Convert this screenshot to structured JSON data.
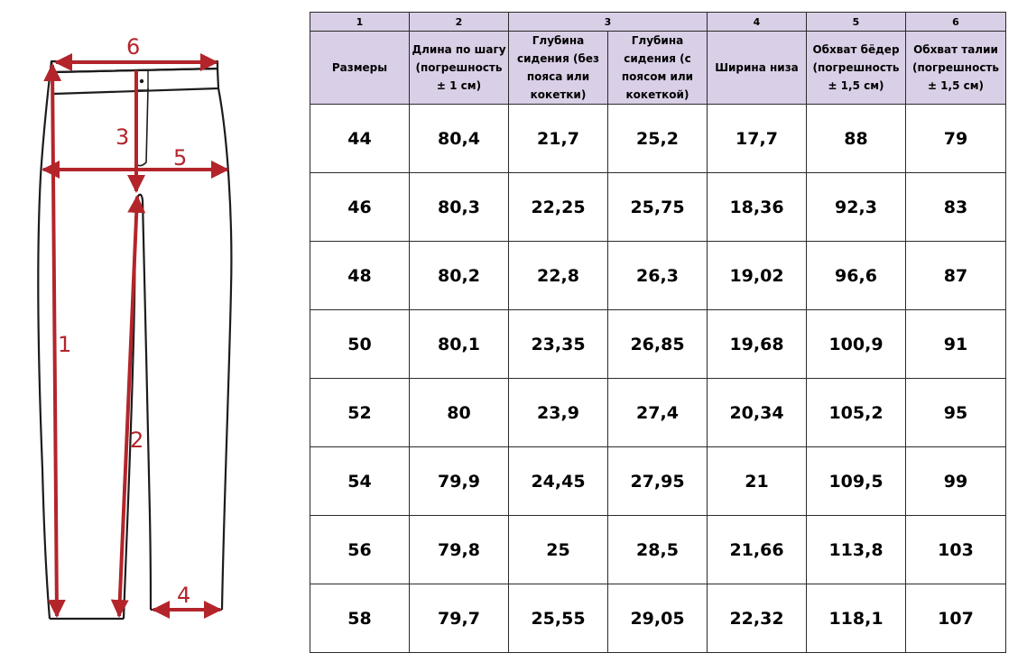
{
  "diagram": {
    "labels": [
      "1",
      "2",
      "3",
      "4",
      "5",
      "6"
    ],
    "line_color": "#b3252b"
  },
  "table": {
    "column_numbers": [
      "1",
      "2",
      "3",
      "4",
      "5",
      "6"
    ],
    "headers": [
      "Размеры",
      "Длина по шагу (погрешность ± 1 см)",
      "Глубина сидения (без пояса или кокетки)",
      "Глубина сидения  (с поясом или кокеткой)",
      "Ширина низа",
      "Обхват бёдер (погрешность ± 1,5 см)",
      "Обхват талии (погрешность ± 1,5 см)"
    ],
    "rows": [
      [
        "44",
        "80,4",
        "21,7",
        "25,2",
        "17,7",
        "88",
        "79"
      ],
      [
        "46",
        "80,3",
        "22,25",
        "25,75",
        "18,36",
        "92,3",
        "83"
      ],
      [
        "48",
        "80,2",
        "22,8",
        "26,3",
        "19,02",
        "96,6",
        "87"
      ],
      [
        "50",
        "80,1",
        "23,35",
        "26,85",
        "19,68",
        "100,9",
        "91"
      ],
      [
        "52",
        "80",
        "23,9",
        "27,4",
        "20,34",
        "105,2",
        "95"
      ],
      [
        "54",
        "79,9",
        "24,45",
        "27,95",
        "21",
        "109,5",
        "99"
      ],
      [
        "56",
        "79,8",
        "25",
        "28,5",
        "21,66",
        "113,8",
        "103"
      ],
      [
        "58",
        "79,7",
        "25,55",
        "29,05",
        "22,32",
        "118,1",
        "107"
      ]
    ],
    "header_bg": "#d9cfe6"
  }
}
